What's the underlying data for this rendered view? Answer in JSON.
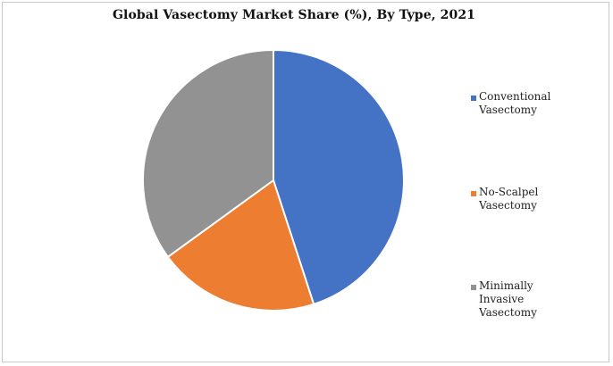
{
  "chart_data": {
    "type": "pie",
    "title": "Global Vasectomy Market Share (%), By Type, 2021",
    "categories": [
      "Conventional\nVasectomy",
      "No-Scalpel\nVasectomy",
      "Minimally\nInvasive\nVasectomy"
    ],
    "values": [
      45,
      20,
      35
    ],
    "colors": [
      "#4472c4",
      "#ed7d31",
      "#929292"
    ],
    "legend_position": "right"
  }
}
